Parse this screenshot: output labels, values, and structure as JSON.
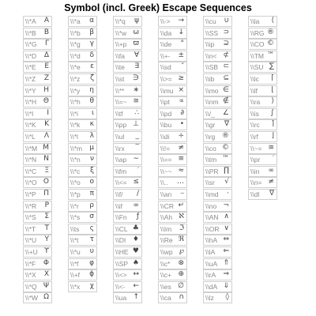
{
  "title": "Symbol (incl. Greek) Escape Sequences",
  "columns": [
    [
      {
        "code": "\\\\*A",
        "sym": "Α"
      },
      {
        "code": "\\\\*B",
        "sym": "Β"
      },
      {
        "code": "\\\\*G",
        "sym": "Γ"
      },
      {
        "code": "\\\\*D",
        "sym": "Δ"
      },
      {
        "code": "\\\\*E",
        "sym": "Ε"
      },
      {
        "code": "\\\\*Z",
        "sym": "Ζ"
      },
      {
        "code": "\\\\*Y",
        "sym": "Η"
      },
      {
        "code": "\\\\*H",
        "sym": "Θ"
      },
      {
        "code": "\\\\*I",
        "sym": "Ι"
      },
      {
        "code": "\\\\*K",
        "sym": "Κ"
      },
      {
        "code": "\\\\*L",
        "sym": "Λ"
      },
      {
        "code": "\\\\*M",
        "sym": "Μ"
      },
      {
        "code": "\\\\*N",
        "sym": "Ν"
      },
      {
        "code": "\\\\*C",
        "sym": "Ξ"
      },
      {
        "code": "\\\\*O",
        "sym": "Ο"
      },
      {
        "code": "\\\\*P",
        "sym": "Π"
      },
      {
        "code": "\\\\*R",
        "sym": "Ρ"
      },
      {
        "code": "\\\\*S",
        "sym": "Σ"
      },
      {
        "code": "\\\\*T",
        "sym": "Τ"
      },
      {
        "code": "\\\\*U",
        "sym": "Υ"
      },
      {
        "code": "\\\\+U",
        "sym": "ϒ"
      },
      {
        "code": "\\\\*F",
        "sym": "Φ"
      },
      {
        "code": "\\\\*X",
        "sym": "Χ"
      },
      {
        "code": "\\\\*Q",
        "sym": "Ψ"
      },
      {
        "code": "\\\\*W",
        "sym": "Ω"
      }
    ],
    [
      {
        "code": "\\\\*a",
        "sym": "α"
      },
      {
        "code": "\\\\*b",
        "sym": "β"
      },
      {
        "code": "\\\\*g",
        "sym": "γ"
      },
      {
        "code": "\\\\*d",
        "sym": "δ"
      },
      {
        "code": "\\\\*e",
        "sym": "ε"
      },
      {
        "code": "\\\\*z",
        "sym": "ζ"
      },
      {
        "code": "\\\\*y",
        "sym": "η"
      },
      {
        "code": "\\\\*h",
        "sym": "θ"
      },
      {
        "code": "\\\\*i",
        "sym": "ι"
      },
      {
        "code": "\\\\*k",
        "sym": "κ"
      },
      {
        "code": "\\\\*l",
        "sym": "λ"
      },
      {
        "code": "\\\\*m",
        "sym": "μ"
      },
      {
        "code": "\\\\*n",
        "sym": "ν"
      },
      {
        "code": "\\\\*c",
        "sym": "ξ"
      },
      {
        "code": "\\\\*o",
        "sym": "ο"
      },
      {
        "code": "\\\\*p",
        "sym": "π"
      },
      {
        "code": "\\\\*r",
        "sym": "ρ"
      },
      {
        "code": "\\\\*s",
        "sym": "σ"
      },
      {
        "code": "\\\\ts",
        "sym": "ς"
      },
      {
        "code": "\\\\*t",
        "sym": "τ"
      },
      {
        "code": "\\\\*u",
        "sym": "υ"
      },
      {
        "code": "\\\\*f",
        "sym": "φ"
      },
      {
        "code": "\\\\+f",
        "sym": "ϕ"
      },
      {
        "code": "\\\\*x",
        "sym": "χ"
      }
    ],
    [
      {
        "code": "\\\\*q",
        "sym": "ψ"
      },
      {
        "code": "\\\\*w",
        "sym": "ω"
      },
      {
        "code": "\\\\+p",
        "sym": "ϖ"
      },
      {
        "code": "\\\\fa",
        "sym": "∀"
      },
      {
        "code": "\\\\te",
        "sym": "∃"
      },
      {
        "code": "\\\\st",
        "sym": "∋"
      },
      {
        "code": "\\\\**",
        "sym": "∗"
      },
      {
        "code": "\\\\=~",
        "sym": "≅"
      },
      {
        "code": "\\\\tf",
        "sym": "∴"
      },
      {
        "code": "\\\\pp",
        "sym": "⊥"
      },
      {
        "code": "\\\\ul",
        "sym": "_"
      },
      {
        "code": "\\\\rx",
        "sym": "‾"
      },
      {
        "code": "\\\\ap",
        "sym": "∼"
      },
      {
        "code": "\\\\fm",
        "sym": "′"
      },
      {
        "code": "\\\\<=",
        "sym": "≤"
      },
      {
        "code": "\\\\f/",
        "sym": "∕"
      },
      {
        "code": "\\\\if",
        "sym": "∞"
      },
      {
        "code": "\\\\Fn",
        "sym": "ƒ"
      },
      {
        "code": "\\\\CL",
        "sym": "♣"
      },
      {
        "code": "\\\\DI",
        "sym": "♦"
      },
      {
        "code": "\\\\HE",
        "sym": "♥"
      },
      {
        "code": "\\\\SP",
        "sym": "♠"
      },
      {
        "code": "\\\\<>",
        "sym": "↔"
      },
      {
        "code": "\\\\<-",
        "sym": "←"
      },
      {
        "code": "\\\\ua",
        "sym": "↑"
      }
    ],
    [
      {
        "code": "\\\\->",
        "sym": "→"
      },
      {
        "code": "\\\\da",
        "sym": "↓"
      },
      {
        "code": "\\\\de",
        "sym": "°"
      },
      {
        "code": "\\\\+-",
        "sym": "±"
      },
      {
        "code": "\\\\sd",
        "sym": "″"
      },
      {
        "code": "\\\\>=",
        "sym": "≥"
      },
      {
        "code": "\\\\mu",
        "sym": "×"
      },
      {
        "code": "\\\\pt",
        "sym": "∝"
      },
      {
        "code": "\\\\pd",
        "sym": "∂"
      },
      {
        "code": "\\\\bu",
        "sym": "•"
      },
      {
        "code": "\\\\di",
        "sym": "÷"
      },
      {
        "code": "\\\\!=",
        "sym": "≠"
      },
      {
        "code": "\\\\==",
        "sym": "≡"
      },
      {
        "code": "\\\\~~",
        "sym": "≈"
      },
      {
        "code": "\\\\..",
        "sym": "…"
      },
      {
        "code": "\\\\an",
        "sym": "⎯"
      },
      {
        "code": "\\\\CR",
        "sym": "↵"
      },
      {
        "code": "\\\\Ah",
        "sym": "ℵ"
      },
      {
        "code": "\\\\Im",
        "sym": "ℑ"
      },
      {
        "code": "\\\\Re",
        "sym": "ℜ"
      },
      {
        "code": "\\\\wp",
        "sym": "℘"
      },
      {
        "code": "\\\\c*",
        "sym": "⊗"
      },
      {
        "code": "\\\\c+",
        "sym": "⊕"
      },
      {
        "code": "\\\\es",
        "sym": "∅"
      },
      {
        "code": "\\\\ca",
        "sym": "∩"
      }
    ],
    [
      {
        "code": "\\\\cu",
        "sym": "∪"
      },
      {
        "code": "\\\\SS",
        "sym": "⊃"
      },
      {
        "code": "\\\\ip",
        "sym": "⊇"
      },
      {
        "code": "\\\\n<",
        "sym": "⊄"
      },
      {
        "code": "\\\\SB",
        "sym": "⊂"
      },
      {
        "code": "\\\\ib",
        "sym": "⊆"
      },
      {
        "code": "\\\\mo",
        "sym": "∈"
      },
      {
        "code": "\\\\nm",
        "sym": "∉"
      },
      {
        "code": "\\\\/_",
        "sym": "∠"
      },
      {
        "code": "\\\\gr",
        "sym": "∇"
      },
      {
        "code": "\\\\rg",
        "sym": "®"
      },
      {
        "code": "\\\\co",
        "sym": "©"
      },
      {
        "code": "\\\\tm",
        "sym": "™"
      },
      {
        "code": "\\\\PR",
        "sym": "∏"
      },
      {
        "code": "\\\\sr",
        "sym": "√"
      },
      {
        "code": "\\\\md",
        "sym": "⋅"
      },
      {
        "code": "\\\\no",
        "sym": "¬"
      },
      {
        "code": "\\\\AN",
        "sym": "∧"
      },
      {
        "code": "\\\\OR",
        "sym": "∨"
      },
      {
        "code": "\\\\hA",
        "sym": "⇔"
      },
      {
        "code": "\\\\lA",
        "sym": "⇐"
      },
      {
        "code": "\\\\uA",
        "sym": "⇑"
      },
      {
        "code": "\\\\rA",
        "sym": "⇒"
      },
      {
        "code": "\\\\dA",
        "sym": "⇓"
      },
      {
        "code": "\\\\lz",
        "sym": "◊"
      }
    ],
    [
      {
        "code": "\\\\la",
        "sym": "⟨"
      },
      {
        "code": "\\\\RG",
        "sym": "®"
      },
      {
        "code": "\\\\CO",
        "sym": "©"
      },
      {
        "code": "\\\\TM",
        "sym": "™"
      },
      {
        "code": "\\\\SU",
        "sym": "∑"
      },
      {
        "code": "\\\\lc",
        "sym": "⌈"
      },
      {
        "code": "\\\\lf",
        "sym": "⌊"
      },
      {
        "code": "\\\\ra",
        "sym": "⟩"
      },
      {
        "code": "\\\\is",
        "sym": "∫"
      },
      {
        "code": "\\\\rc",
        "sym": "⌉"
      },
      {
        "code": "\\\\rf",
        "sym": "⌋"
      },
      {
        "code": "\\\\~=",
        "sym": "≅"
      },
      {
        "code": "\\\\pr",
        "sym": "′"
      },
      {
        "code": "\\\\in",
        "sym": "∞"
      },
      {
        "code": "\\\\n=",
        "sym": "≠"
      },
      {
        "code": "\\\\dl",
        "sym": "∇"
      }
    ]
  ]
}
